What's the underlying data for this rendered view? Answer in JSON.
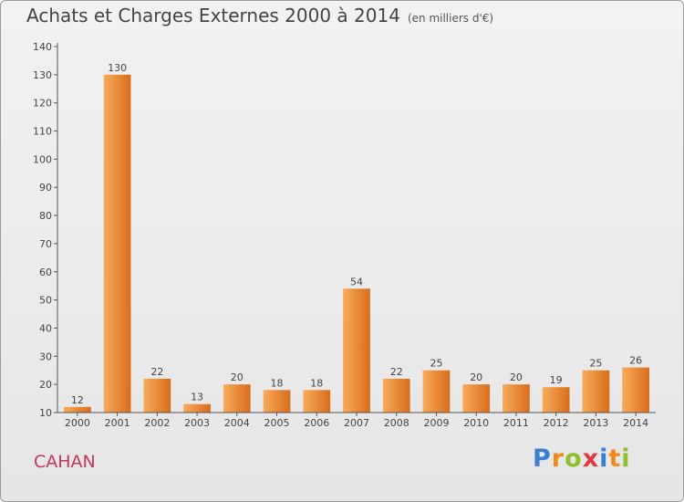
{
  "title": "Achats et Charges Externes 2000 à 2014",
  "subtitle": "(en milliers d'€)",
  "city": "CAHAN",
  "logo": {
    "text": "Proxiti",
    "letters": [
      "P",
      "r",
      "o",
      "x",
      "i",
      "t",
      "i"
    ],
    "colors": [
      "#3a7fd0",
      "#f08a1c",
      "#8fbf2a",
      "#e23a3a",
      "#3a7fd0",
      "#f08a1c",
      "#8fbf2a"
    ]
  },
  "colors": {
    "bar_light": "#f7ab5c",
    "bar_dark": "#d96d1a",
    "axis": "#555555",
    "grid": "#dcdcdc",
    "city": "#c2375a"
  },
  "chart_data": {
    "type": "bar",
    "title": "Achats et Charges Externes 2000 à 2014",
    "subtitle": "(en milliers d'€)",
    "categories": [
      "2000",
      "2001",
      "2002",
      "2003",
      "2004",
      "2005",
      "2006",
      "2007",
      "2008",
      "2009",
      "2010",
      "2011",
      "2012",
      "2013",
      "2014"
    ],
    "values": [
      12,
      130,
      22,
      13,
      20,
      18,
      18,
      54,
      22,
      25,
      20,
      20,
      19,
      25,
      26
    ],
    "ylim": [
      10,
      140
    ],
    "yticks": [
      10,
      20,
      30,
      40,
      50,
      60,
      70,
      80,
      90,
      100,
      110,
      120,
      130,
      140
    ],
    "grid": false,
    "show_data_labels": true
  }
}
